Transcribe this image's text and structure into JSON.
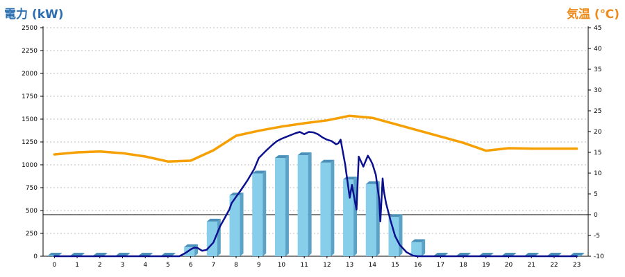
{
  "colors": {
    "power_title": "#2b6fb1",
    "temp_title": "#ee8a1a",
    "bar_front": "#87ceeb",
    "bar_side": "#5aa3c6",
    "bar_top": "#4a90b8",
    "power_line": "#0b108f",
    "temp_line": "#f5a000",
    "grid": "#bbbbbb",
    "zero_line": "#000000"
  },
  "chart_data": {
    "type": "bar",
    "title_left": "電力 (kW)",
    "title_right": "気温 (℃)",
    "categories": [
      "0",
      "1",
      "2",
      "3",
      "4",
      "5",
      "6",
      "7",
      "8",
      "9",
      "10",
      "11",
      "12",
      "13",
      "14",
      "15",
      "16",
      "17",
      "18",
      "19",
      "20",
      "21",
      "22",
      "23"
    ],
    "y_left": {
      "min": 0,
      "max": 2500,
      "ticks": [
        "0",
        "250",
        "500",
        "750",
        "1000",
        "1250",
        "1500",
        "1750",
        "2000",
        "2250",
        "2500"
      ]
    },
    "y_right": {
      "min": -10,
      "max": 45,
      "ticks": [
        "-10",
        "-5",
        "0",
        "5",
        "10",
        "15",
        "20",
        "25",
        "30",
        "35",
        "40",
        "45"
      ]
    },
    "grid": true,
    "series": [
      {
        "kind": "bar",
        "axis": "left",
        "values": [
          0,
          0,
          0,
          0,
          0,
          0,
          100,
          380,
          665,
          905,
          1075,
          1105,
          1025,
          840,
          790,
          430,
          155,
          0,
          0,
          0,
          0,
          0,
          0,
          0
        ]
      },
      {
        "kind": "line",
        "axis": "left",
        "x": [
          0,
          5.5,
          5.8,
          6.0,
          6.1,
          6.2,
          6.3,
          6.5,
          6.7,
          7.0,
          7.3,
          7.5,
          7.7,
          7.8,
          8.0,
          8.2,
          8.5,
          8.8,
          9.0,
          9.3,
          9.6,
          9.8,
          10.0,
          10.2,
          10.4,
          10.6,
          10.8,
          11.0,
          11.2,
          11.4,
          11.6,
          11.8,
          12.0,
          12.2,
          12.4,
          12.5,
          12.6,
          12.8,
          13.0,
          13.1,
          13.2,
          13.3,
          13.4,
          13.6,
          13.8,
          13.9,
          14.0,
          14.15,
          14.3,
          14.35,
          14.45,
          14.5,
          14.6,
          14.8,
          15.0,
          15.2,
          15.5,
          15.8,
          16.0,
          16.3,
          16.6,
          23
        ],
        "y": [
          0,
          0,
          40,
          75,
          88,
          95,
          90,
          60,
          70,
          150,
          330,
          420,
          510,
          580,
          650,
          720,
          830,
          955,
          1075,
          1150,
          1220,
          1260,
          1285,
          1305,
          1325,
          1345,
          1360,
          1335,
          1360,
          1355,
          1335,
          1300,
          1275,
          1260,
          1225,
          1235,
          1275,
          1005,
          640,
          780,
          640,
          510,
          1090,
          980,
          1100,
          1060,
          1010,
          890,
          620,
          380,
          850,
          720,
          580,
          390,
          220,
          125,
          45,
          5,
          0,
          0,
          0,
          0
        ]
      },
      {
        "kind": "line",
        "axis": "right",
        "x": [
          0,
          1,
          2,
          3,
          4,
          5,
          6,
          7,
          8,
          9,
          10,
          11,
          12,
          13,
          14,
          15,
          16,
          17,
          18,
          19,
          20,
          21,
          22,
          23
        ],
        "y": [
          14.5,
          15.0,
          15.2,
          14.8,
          14.0,
          12.8,
          13.0,
          15.5,
          19.0,
          20.2,
          21.2,
          22.0,
          22.7,
          23.8,
          23.3,
          21.8,
          20.3,
          18.8,
          17.3,
          15.4,
          16.0,
          15.9,
          15.9,
          15.9
        ]
      }
    ]
  }
}
